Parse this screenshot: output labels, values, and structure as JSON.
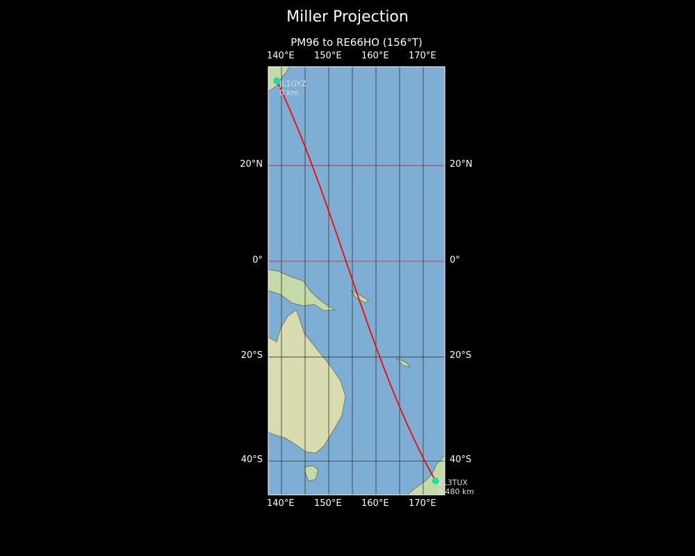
{
  "title": "Miller Projection",
  "subtitle": "PM96 to RE66HO (156°T)",
  "map": {
    "projection": "Miller",
    "extent": {
      "lon": [
        137.2,
        174.6
      ],
      "lat": [
        -46,
        39
      ]
    },
    "ocean_color": "#7eaed3",
    "land_color": "#c6d9a8",
    "path_color": "#ff0000",
    "marker_color": "#1de0a0"
  },
  "axes": {
    "top_lon_labels": [
      "140°E",
      "150°E",
      "160°E",
      "170°E"
    ],
    "bottom_lon_labels": [
      "140°E",
      "150°E",
      "160°E",
      "170°E"
    ],
    "left_lat_labels": [
      "20°N",
      "0°",
      "20°S",
      "40°S"
    ],
    "right_lat_labels": [
      "20°N",
      "0°",
      "20°S",
      "40°S"
    ],
    "lon_ticks": [
      140,
      150,
      160,
      170
    ],
    "lat_ticks": [
      20,
      0,
      -20,
      -40
    ]
  },
  "start": {
    "callsign": "JL1GYZ",
    "distance": "0 km",
    "lon": 139.0,
    "lat": 36.5
  },
  "end": {
    "callsign": "ZL3TUX",
    "distance": "9,480 km",
    "lon": 172.6,
    "lat": -43.5
  }
}
